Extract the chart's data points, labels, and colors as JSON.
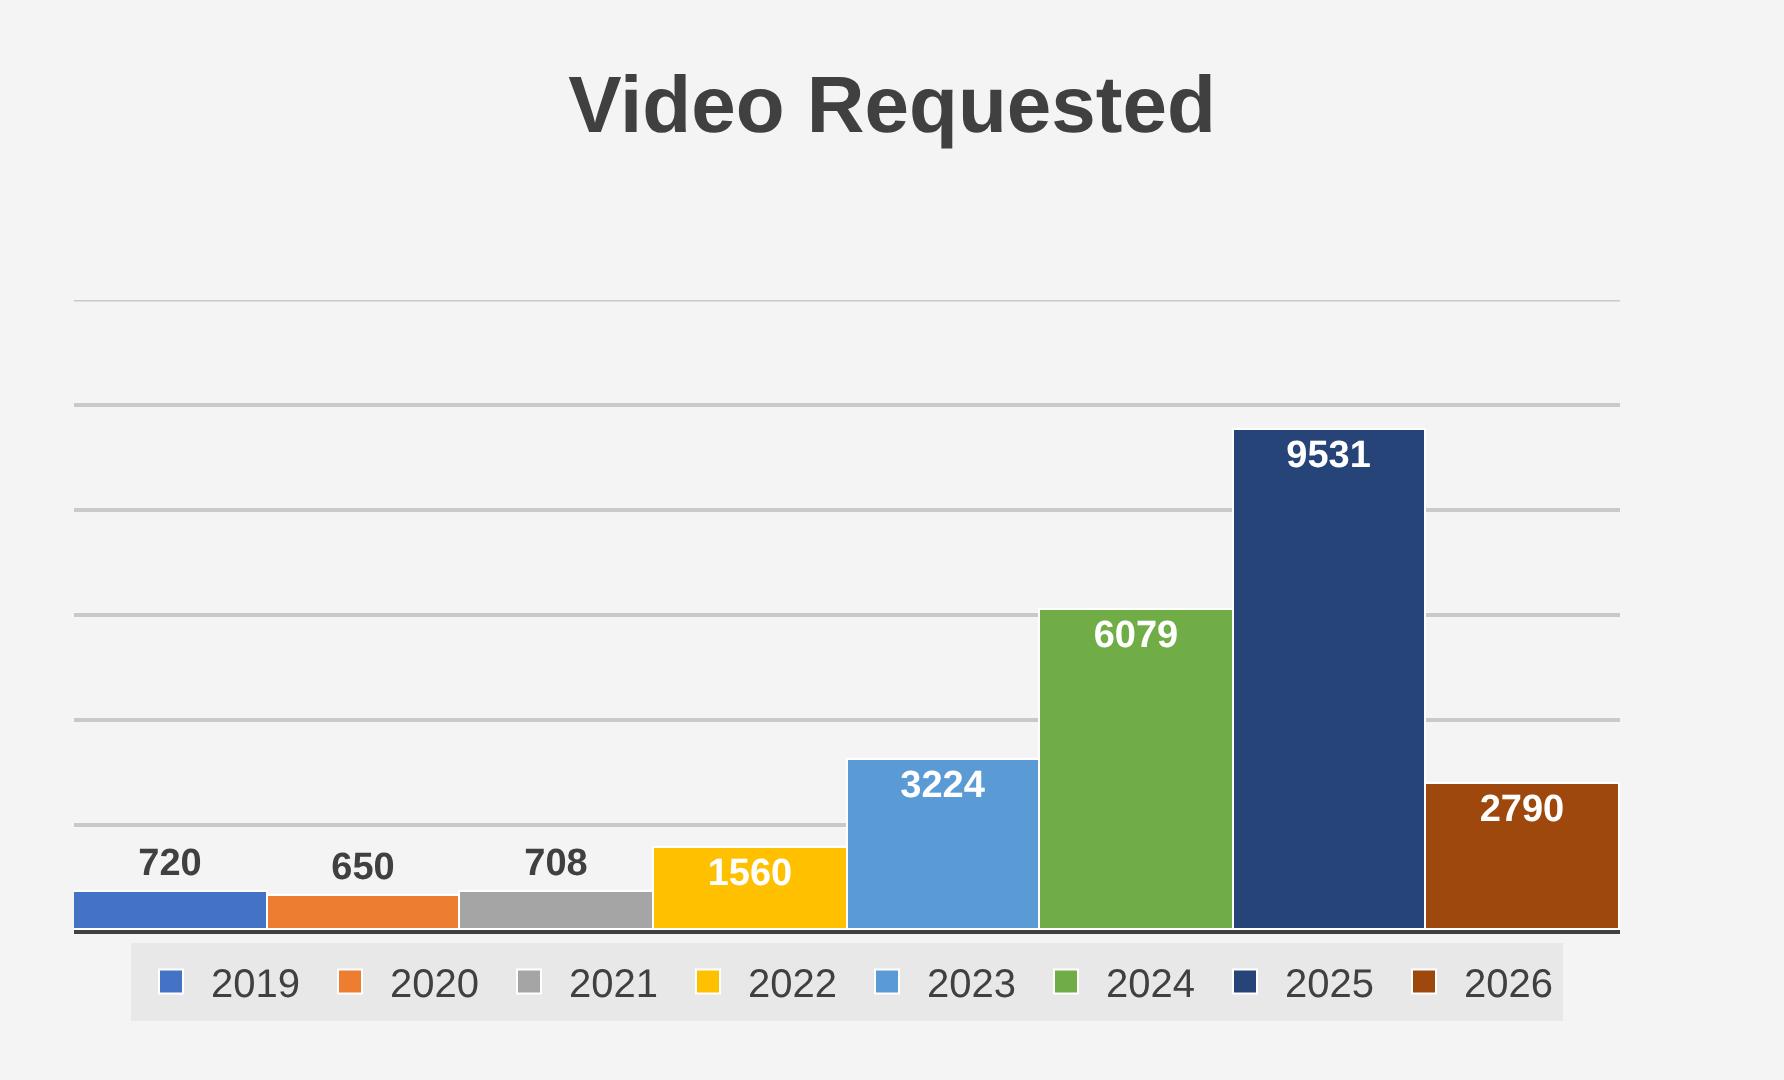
{
  "chart_data": {
    "type": "bar",
    "title": "Video Requested",
    "categories": [
      null
    ],
    "series": [
      {
        "name": "2019",
        "color": "#4472c4",
        "values": [
          720
        ]
      },
      {
        "name": "2020",
        "color": "#ed7d31",
        "values": [
          650
        ]
      },
      {
        "name": "2021",
        "color": "#a5a5a5",
        "values": [
          708
        ]
      },
      {
        "name": "2022",
        "color": "#ffc000",
        "values": [
          1560
        ]
      },
      {
        "name": "2023",
        "color": "#5b9bd5",
        "values": [
          3224
        ]
      },
      {
        "name": "2024",
        "color": "#70ad47",
        "values": [
          6079
        ]
      },
      {
        "name": "2025",
        "color": "#264478",
        "values": [
          9531
        ]
      },
      {
        "name": "2026",
        "color": "#9e480e",
        "values": [
          2790
        ]
      }
    ],
    "ylim": [
      0,
      12000
    ],
    "yticks": [
      {
        "value": 0,
        "label": null
      },
      {
        "value": 2000,
        "label": null
      },
      {
        "value": 4000,
        "label": null
      },
      {
        "value": 6000,
        "label": null
      },
      {
        "value": 8000,
        "label": null
      },
      {
        "value": 10000,
        "label": null
      },
      {
        "value": 12000,
        "label": null
      }
    ],
    "grid": "y",
    "data_labels": true,
    "legend": "bottom"
  }
}
